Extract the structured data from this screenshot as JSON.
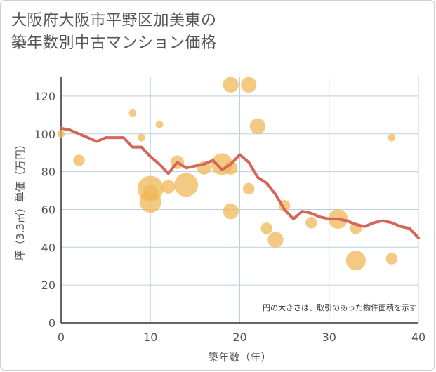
{
  "title_line1": "大阪府大阪市平野区加美東の",
  "title_line2": "築年数別中古マンション価格",
  "chart_data": {
    "type": "scatter",
    "xlabel": "築年数（年）",
    "ylabel": "坪（3.3㎡）単価（万円）",
    "xlim": [
      0,
      40
    ],
    "ylim": [
      0,
      130
    ],
    "xticks": [
      0,
      10,
      20,
      30,
      40
    ],
    "yticks": [
      0,
      20,
      40,
      60,
      80,
      100,
      120
    ],
    "grid": true,
    "note": "円の大きさは、取引のあった物件面積を示す",
    "colors": {
      "bubble": "#f0b85a",
      "line": "#d4665a",
      "grid": "#b9cfe0"
    },
    "bubbles": [
      {
        "x": 0,
        "y": 100,
        "size": 3
      },
      {
        "x": 2,
        "y": 86,
        "size": 5
      },
      {
        "x": 8,
        "y": 111,
        "size": 3
      },
      {
        "x": 9,
        "y": 98,
        "size": 3
      },
      {
        "x": 10,
        "y": 71,
        "size": 12
      },
      {
        "x": 10,
        "y": 64,
        "size": 10
      },
      {
        "x": 10,
        "y": 69,
        "size": 7
      },
      {
        "x": 11,
        "y": 105,
        "size": 3
      },
      {
        "x": 12,
        "y": 72,
        "size": 6
      },
      {
        "x": 13,
        "y": 85,
        "size": 6
      },
      {
        "x": 14,
        "y": 73,
        "size": 11
      },
      {
        "x": 16,
        "y": 82,
        "size": 6
      },
      {
        "x": 18,
        "y": 84,
        "size": 10
      },
      {
        "x": 19,
        "y": 82,
        "size": 6
      },
      {
        "x": 19,
        "y": 59,
        "size": 7
      },
      {
        "x": 19,
        "y": 126,
        "size": 7
      },
      {
        "x": 21,
        "y": 126,
        "size": 7
      },
      {
        "x": 21,
        "y": 71,
        "size": 5
      },
      {
        "x": 22,
        "y": 104,
        "size": 7
      },
      {
        "x": 23,
        "y": 50,
        "size": 5
      },
      {
        "x": 24,
        "y": 44,
        "size": 7
      },
      {
        "x": 25,
        "y": 62,
        "size": 5
      },
      {
        "x": 28,
        "y": 53,
        "size": 5
      },
      {
        "x": 31,
        "y": 55,
        "size": 9
      },
      {
        "x": 33,
        "y": 50,
        "size": 5
      },
      {
        "x": 33,
        "y": 33,
        "size": 9
      },
      {
        "x": 37,
        "y": 98,
        "size": 3
      },
      {
        "x": 37,
        "y": 34,
        "size": 5
      }
    ],
    "line": {
      "x": [
        0,
        1,
        2,
        3,
        4,
        5,
        6,
        7,
        8,
        9,
        10,
        11,
        12,
        13,
        14,
        15,
        16,
        17,
        18,
        19,
        20,
        21,
        22,
        23,
        24,
        25,
        26,
        27,
        28,
        29,
        30,
        31,
        32,
        33,
        34,
        35,
        36,
        37,
        38,
        39,
        40
      ],
      "y": [
        103,
        102,
        100,
        98,
        96,
        98,
        98,
        98,
        93,
        93,
        88,
        84,
        79,
        85,
        82,
        83,
        84,
        86,
        81,
        84,
        89,
        85,
        77,
        74,
        68,
        60,
        55,
        59,
        58,
        56,
        55,
        55,
        54,
        52,
        51,
        53,
        54,
        53,
        51,
        50,
        45
      ]
    }
  }
}
